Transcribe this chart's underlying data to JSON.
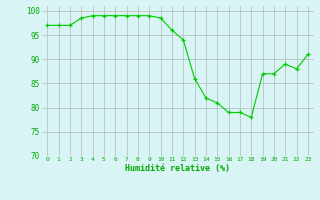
{
  "x": [
    0,
    1,
    2,
    3,
    4,
    5,
    6,
    7,
    8,
    9,
    10,
    11,
    12,
    13,
    14,
    15,
    16,
    17,
    18,
    19,
    20,
    21,
    22,
    23
  ],
  "y": [
    97,
    97,
    97,
    98.5,
    99,
    99,
    99,
    99,
    99,
    99,
    98.5,
    96,
    94,
    86,
    82,
    81,
    79,
    79,
    78,
    87,
    87,
    89,
    88,
    91
  ],
  "line_color": "#00cc00",
  "marker_color": "#00cc00",
  "bg_color": "#d8f4f4",
  "grid_color": "#aaaaaa",
  "xlabel": "Humidité relative (%)",
  "xlabel_color": "#00aa00",
  "tick_color": "#00aa00",
  "ylim": [
    70,
    101
  ],
  "xlim": [
    -0.5,
    23.5
  ],
  "yticks": [
    70,
    75,
    80,
    85,
    90,
    95,
    100
  ],
  "xticks": [
    0,
    1,
    2,
    3,
    4,
    5,
    6,
    7,
    8,
    9,
    10,
    11,
    12,
    13,
    14,
    15,
    16,
    17,
    18,
    19,
    20,
    21,
    22,
    23
  ],
  "xtick_labels": [
    "0",
    "1",
    "2",
    "3",
    "4",
    "5",
    "6",
    "7",
    "8",
    "9",
    "10",
    "11",
    "12",
    "13",
    "14",
    "15",
    "16",
    "17",
    "18",
    "19",
    "20",
    "21",
    "22",
    "23"
  ]
}
